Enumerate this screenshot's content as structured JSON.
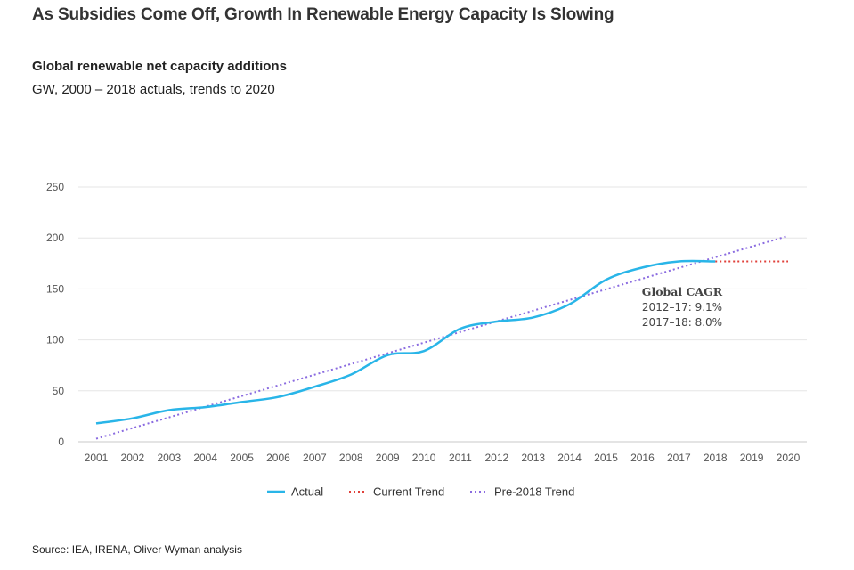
{
  "title": "As Subsidies Come Off, Growth In Renewable Energy Capacity Is Slowing",
  "chart_data": {
    "type": "line",
    "title": "Global renewable net capacity additions",
    "subtitle": "GW, 2000 – 2018 actuals, trends to 2020",
    "categories": [
      "2001",
      "2002",
      "2003",
      "2004",
      "2005",
      "2006",
      "2007",
      "2008",
      "2009",
      "2010",
      "2011",
      "2012",
      "2013",
      "2014",
      "2015",
      "2016",
      "2017",
      "2018",
      "2019",
      "2020"
    ],
    "ylim": [
      0,
      250
    ],
    "yticks": [
      "0",
      "50",
      "100",
      "150",
      "200",
      "250"
    ],
    "grid": true,
    "series": [
      {
        "name": "Actual",
        "color": "#29b5e8",
        "style": "solid",
        "x": [
          "2001",
          "2002",
          "2003",
          "2004",
          "2005",
          "2006",
          "2007",
          "2008",
          "2009",
          "2010",
          "2011",
          "2012",
          "2013",
          "2014",
          "2015",
          "2016",
          "2017",
          "2018"
        ],
        "values": [
          18,
          23,
          31,
          34,
          39,
          44,
          54,
          66,
          85,
          89,
          111,
          118,
          122,
          135,
          159,
          171,
          177,
          177
        ]
      },
      {
        "name": "Current Trend",
        "color": "#e0403a",
        "style": "dotted",
        "x": [
          "2018",
          "2019",
          "2020"
        ],
        "values": [
          177,
          177,
          177
        ]
      },
      {
        "name": "Pre-2018 Trend",
        "color": "#8a6be0",
        "style": "dotted",
        "x": [
          "2001",
          "2020"
        ],
        "values": [
          3,
          202
        ]
      }
    ],
    "legend": [
      "Actual",
      "Current Trend",
      "Pre-2018 Trend"
    ],
    "annotation": {
      "title": "Global CAGR",
      "lines": [
        "2012–17: 9.1%",
        "2017–18: 8.0%"
      ]
    },
    "source": "Source: IEA, IRENA, Oliver Wyman analysis"
  }
}
